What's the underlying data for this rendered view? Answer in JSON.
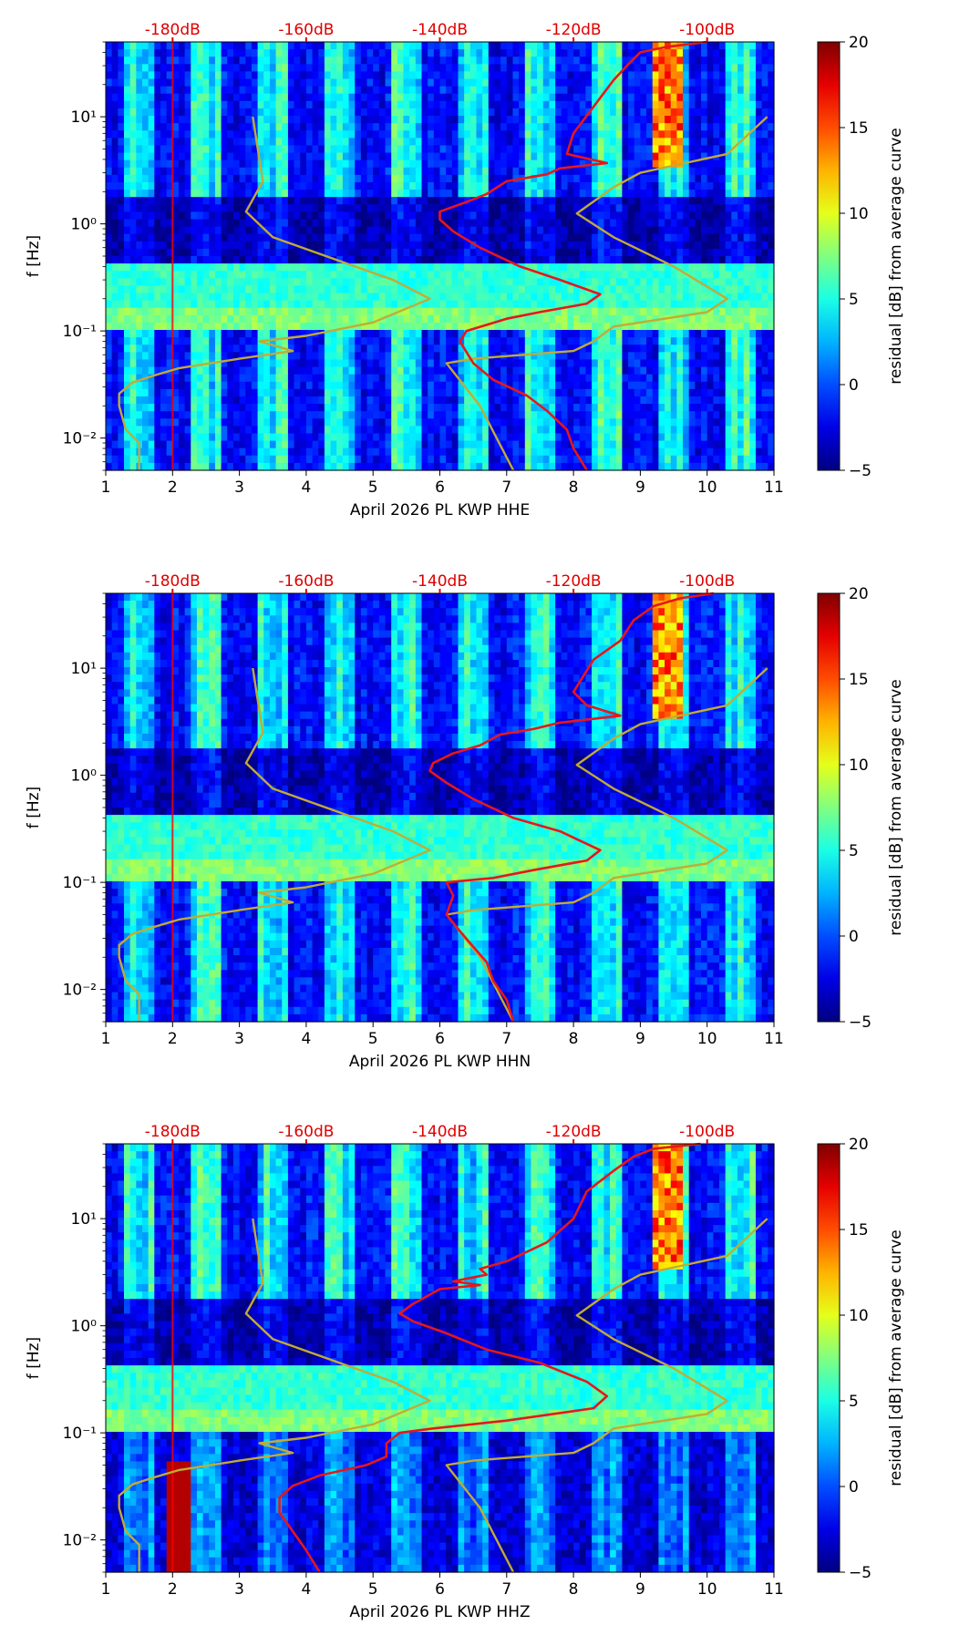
{
  "figure": {
    "colorbar": {
      "label": "residual [dB] from average curve",
      "range": [
        -5,
        20
      ],
      "ticks": [
        -5,
        0,
        5,
        10,
        15,
        20
      ]
    },
    "ylabel": "f [Hz]",
    "top_tick_color": "#e00000",
    "noise_model_colors": {
      "red": "#e8161a",
      "olive": "#c2ab35"
    }
  },
  "chart_data": [
    {
      "type": "heatmap",
      "xlabel": "April 2026 PL KWP  HHE",
      "ylabel": "f [Hz]",
      "xlim": [
        1,
        11
      ],
      "xticks": [
        1,
        2,
        3,
        4,
        5,
        6,
        7,
        8,
        9,
        10,
        11
      ],
      "yscale": "log",
      "ylim": [
        0.005,
        50
      ],
      "yticks": [
        {
          "value": 0.01,
          "label": "10⁻²"
        },
        {
          "value": 0.1,
          "label": "10⁻¹"
        },
        {
          "value": 1,
          "label": "10⁰"
        },
        {
          "value": 10,
          "label": "10¹"
        }
      ],
      "top_axis": {
        "labels": [
          "-180dB",
          "-160dB",
          "-140dB",
          "-120dB",
          "-100dB"
        ],
        "positions": [
          2,
          4,
          6,
          8,
          10
        ]
      },
      "series": [
        {
          "name": "noise model",
          "color": "#c2ab35",
          "points": [
            [
              3.2,
              10
            ],
            [
              3.35,
              2.5
            ],
            [
              3.1,
              1.3
            ],
            [
              3.5,
              0.75
            ],
            [
              4.5,
              0.45
            ],
            [
              5.3,
              0.3
            ],
            [
              5.85,
              0.2
            ],
            [
              5.0,
              0.12
            ],
            [
              4.0,
              0.09
            ],
            [
              3.3,
              0.08
            ],
            [
              3.8,
              0.065
            ],
            [
              3.0,
              0.055
            ],
            [
              2.1,
              0.045
            ],
            [
              1.7,
              0.038
            ],
            [
              1.4,
              0.033
            ],
            [
              1.2,
              0.026
            ],
            [
              1.2,
              0.02
            ],
            [
              1.3,
              0.012
            ],
            [
              1.5,
              0.009
            ],
            [
              1.5,
              0.005
            ]
          ]
        },
        {
          "name": "noise model",
          "color": "#c2ab35",
          "points": [
            [
              10.9,
              10
            ],
            [
              10.3,
              4.5
            ],
            [
              9.0,
              3.0
            ],
            [
              8.6,
              2.2
            ],
            [
              8.05,
              1.25
            ],
            [
              8.6,
              0.75
            ],
            [
              9.5,
              0.4
            ],
            [
              10.3,
              0.2
            ],
            [
              10.0,
              0.15
            ],
            [
              8.6,
              0.11
            ],
            [
              8.3,
              0.08
            ],
            [
              8.0,
              0.065
            ],
            [
              6.5,
              0.055
            ],
            [
              6.1,
              0.05
            ],
            [
              6.6,
              0.02
            ],
            [
              7.1,
              0.005
            ]
          ]
        },
        {
          "name": "station curve",
          "color": "#e8161a",
          "points": [
            [
              10.0,
              50
            ],
            [
              9.4,
              45
            ],
            [
              9.0,
              40
            ],
            [
              8.8,
              30
            ],
            [
              8.6,
              22
            ],
            [
              8.4,
              15
            ],
            [
              8.0,
              7
            ],
            [
              7.9,
              4.5
            ],
            [
              8.5,
              3.7
            ],
            [
              7.8,
              3.3
            ],
            [
              7.6,
              2.9
            ],
            [
              7.0,
              2.5
            ],
            [
              6.7,
              1.9
            ],
            [
              6.4,
              1.6
            ],
            [
              6.0,
              1.3
            ],
            [
              6.0,
              1.1
            ],
            [
              6.2,
              0.85
            ],
            [
              6.6,
              0.6
            ],
            [
              7.2,
              0.4
            ],
            [
              7.8,
              0.3
            ],
            [
              8.4,
              0.22
            ],
            [
              8.2,
              0.18
            ],
            [
              7.5,
              0.15
            ],
            [
              7.0,
              0.13
            ],
            [
              6.4,
              0.1
            ],
            [
              6.3,
              0.08
            ],
            [
              6.5,
              0.05
            ],
            [
              6.8,
              0.035
            ],
            [
              7.3,
              0.025
            ],
            [
              7.6,
              0.018
            ],
            [
              7.9,
              0.012
            ],
            [
              8.0,
              0.008
            ],
            [
              8.2,
              0.005
            ]
          ]
        }
      ]
    },
    {
      "type": "heatmap",
      "xlabel": "April 2026 PL KWP  HHN",
      "ylabel": "f [Hz]",
      "xlim": [
        1,
        11
      ],
      "xticks": [
        1,
        2,
        3,
        4,
        5,
        6,
        7,
        8,
        9,
        10,
        11
      ],
      "yscale": "log",
      "ylim": [
        0.005,
        50
      ],
      "yticks": [
        {
          "value": 0.01,
          "label": "10⁻²"
        },
        {
          "value": 0.1,
          "label": "10⁻¹"
        },
        {
          "value": 1,
          "label": "10⁰"
        },
        {
          "value": 10,
          "label": "10¹"
        }
      ],
      "top_axis": {
        "labels": [
          "-180dB",
          "-160dB",
          "-140dB",
          "-120dB",
          "-100dB"
        ],
        "positions": [
          2,
          4,
          6,
          8,
          10
        ]
      },
      "series": [
        {
          "name": "noise model",
          "color": "#c2ab35",
          "points": [
            [
              3.2,
              10
            ],
            [
              3.35,
              2.5
            ],
            [
              3.1,
              1.3
            ],
            [
              3.5,
              0.75
            ],
            [
              4.5,
              0.45
            ],
            [
              5.3,
              0.3
            ],
            [
              5.85,
              0.2
            ],
            [
              5.0,
              0.12
            ],
            [
              4.0,
              0.09
            ],
            [
              3.3,
              0.08
            ],
            [
              3.8,
              0.065
            ],
            [
              3.0,
              0.055
            ],
            [
              2.1,
              0.045
            ],
            [
              1.7,
              0.038
            ],
            [
              1.4,
              0.033
            ],
            [
              1.2,
              0.026
            ],
            [
              1.2,
              0.02
            ],
            [
              1.3,
              0.012
            ],
            [
              1.5,
              0.009
            ],
            [
              1.5,
              0.005
            ]
          ]
        },
        {
          "name": "noise model",
          "color": "#c2ab35",
          "points": [
            [
              10.9,
              10
            ],
            [
              10.3,
              4.5
            ],
            [
              9.0,
              3.0
            ],
            [
              8.6,
              2.2
            ],
            [
              8.05,
              1.25
            ],
            [
              8.6,
              0.75
            ],
            [
              9.5,
              0.4
            ],
            [
              10.3,
              0.2
            ],
            [
              10.0,
              0.15
            ],
            [
              8.6,
              0.11
            ],
            [
              8.3,
              0.08
            ],
            [
              8.0,
              0.065
            ],
            [
              6.5,
              0.055
            ],
            [
              6.1,
              0.05
            ],
            [
              6.6,
              0.02
            ],
            [
              7.1,
              0.005
            ]
          ]
        },
        {
          "name": "station curve",
          "color": "#e8161a",
          "points": [
            [
              10.1,
              50
            ],
            [
              9.6,
              45
            ],
            [
              9.2,
              38
            ],
            [
              8.9,
              28
            ],
            [
              8.7,
              18
            ],
            [
              8.3,
              12
            ],
            [
              8.0,
              6
            ],
            [
              8.2,
              4.5
            ],
            [
              8.7,
              3.6
            ],
            [
              7.8,
              3.1
            ],
            [
              7.4,
              2.7
            ],
            [
              6.9,
              2.4
            ],
            [
              6.6,
              1.9
            ],
            [
              6.2,
              1.6
            ],
            [
              5.9,
              1.3
            ],
            [
              5.85,
              1.1
            ],
            [
              6.1,
              0.85
            ],
            [
              6.5,
              0.6
            ],
            [
              7.1,
              0.4
            ],
            [
              7.8,
              0.3
            ],
            [
              8.4,
              0.2
            ],
            [
              8.2,
              0.16
            ],
            [
              7.4,
              0.13
            ],
            [
              6.8,
              0.11
            ],
            [
              6.1,
              0.1
            ],
            [
              6.2,
              0.075
            ],
            [
              6.1,
              0.05
            ],
            [
              6.3,
              0.035
            ],
            [
              6.5,
              0.025
            ],
            [
              6.7,
              0.018
            ],
            [
              6.8,
              0.012
            ],
            [
              7.0,
              0.008
            ],
            [
              7.1,
              0.005
            ]
          ]
        }
      ]
    },
    {
      "type": "heatmap",
      "xlabel": "April 2026 PL KWP  HHZ",
      "ylabel": "f [Hz]",
      "xlim": [
        1,
        11
      ],
      "xticks": [
        1,
        2,
        3,
        4,
        5,
        6,
        7,
        8,
        9,
        10,
        11
      ],
      "yscale": "log",
      "ylim": [
        0.005,
        50
      ],
      "yticks": [
        {
          "value": 0.01,
          "label": "10⁻²"
        },
        {
          "value": 0.1,
          "label": "10⁻¹"
        },
        {
          "value": 1,
          "label": "10⁰"
        },
        {
          "value": 10,
          "label": "10¹"
        }
      ],
      "top_axis": {
        "labels": [
          "-180dB",
          "-160dB",
          "-140dB",
          "-120dB",
          "-100dB"
        ],
        "positions": [
          2,
          4,
          6,
          8,
          10
        ]
      },
      "series": [
        {
          "name": "noise model",
          "color": "#c2ab35",
          "points": [
            [
              3.2,
              10
            ],
            [
              3.35,
              2.5
            ],
            [
              3.1,
              1.3
            ],
            [
              3.5,
              0.75
            ],
            [
              4.5,
              0.45
            ],
            [
              5.3,
              0.3
            ],
            [
              5.85,
              0.2
            ],
            [
              5.0,
              0.12
            ],
            [
              4.0,
              0.09
            ],
            [
              3.3,
              0.08
            ],
            [
              3.8,
              0.065
            ],
            [
              3.0,
              0.055
            ],
            [
              2.1,
              0.045
            ],
            [
              1.7,
              0.038
            ],
            [
              1.4,
              0.033
            ],
            [
              1.2,
              0.026
            ],
            [
              1.2,
              0.02
            ],
            [
              1.3,
              0.012
            ],
            [
              1.5,
              0.009
            ],
            [
              1.5,
              0.005
            ]
          ]
        },
        {
          "name": "noise model",
          "color": "#c2ab35",
          "points": [
            [
              10.9,
              10
            ],
            [
              10.3,
              4.5
            ],
            [
              9.0,
              3.0
            ],
            [
              8.6,
              2.2
            ],
            [
              8.05,
              1.25
            ],
            [
              8.6,
              0.75
            ],
            [
              9.5,
              0.4
            ],
            [
              10.3,
              0.2
            ],
            [
              10.0,
              0.15
            ],
            [
              8.6,
              0.11
            ],
            [
              8.3,
              0.08
            ],
            [
              8.0,
              0.065
            ],
            [
              6.5,
              0.055
            ],
            [
              6.1,
              0.05
            ],
            [
              6.6,
              0.02
            ],
            [
              7.1,
              0.005
            ]
          ]
        },
        {
          "name": "station curve",
          "color": "#e8161a",
          "points": [
            [
              9.9,
              50
            ],
            [
              9.2,
              45
            ],
            [
              8.9,
              38
            ],
            [
              8.6,
              28
            ],
            [
              8.2,
              18
            ],
            [
              8.0,
              10
            ],
            [
              7.6,
              6
            ],
            [
              7.0,
              4.0
            ],
            [
              6.6,
              3.4
            ],
            [
              6.7,
              3.0
            ],
            [
              6.2,
              2.6
            ],
            [
              6.6,
              2.4
            ],
            [
              6.0,
              2.2
            ],
            [
              5.6,
              1.6
            ],
            [
              5.4,
              1.3
            ],
            [
              5.6,
              1.1
            ],
            [
              6.1,
              0.85
            ],
            [
              6.7,
              0.6
            ],
            [
              7.5,
              0.45
            ],
            [
              8.2,
              0.3
            ],
            [
              8.5,
              0.22
            ],
            [
              8.3,
              0.17
            ],
            [
              7.0,
              0.13
            ],
            [
              5.9,
              0.11
            ],
            [
              5.4,
              0.1
            ],
            [
              5.2,
              0.08
            ],
            [
              5.2,
              0.06
            ],
            [
              4.9,
              0.05
            ],
            [
              4.2,
              0.04
            ],
            [
              3.8,
              0.032
            ],
            [
              3.6,
              0.025
            ],
            [
              3.6,
              0.018
            ],
            [
              3.8,
              0.012
            ],
            [
              4.0,
              0.008
            ],
            [
              4.2,
              0.005
            ]
          ]
        }
      ]
    }
  ]
}
